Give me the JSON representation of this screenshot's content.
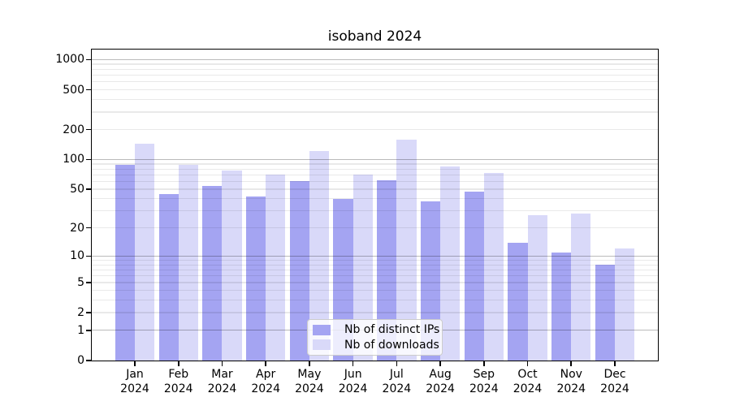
{
  "title": "isoband 2024",
  "legend": {
    "items": [
      {
        "label": "Nb of distinct IPs",
        "color": "#a4a4f2"
      },
      {
        "label": "Nb of downloads",
        "color": "#d9d9f9"
      }
    ]
  },
  "chart_data": {
    "type": "bar",
    "title": "isoband 2024",
    "categories": [
      "Jan 2024",
      "Feb 2024",
      "Mar 2024",
      "Apr 2024",
      "May 2024",
      "Jun 2024",
      "Jul 2024",
      "Aug 2024",
      "Sep 2024",
      "Oct 2024",
      "Nov 2024",
      "Dec 2024"
    ],
    "series": [
      {
        "name": "Nb of distinct IPs",
        "color": "#a4a4f2",
        "values": [
          88,
          45,
          54,
          42,
          61,
          40,
          62,
          38,
          47,
          14,
          11,
          8
        ]
      },
      {
        "name": "Nb of downloads",
        "color": "#d9d9f9",
        "values": [
          145,
          88,
          78,
          70,
          122,
          70,
          160,
          85,
          73,
          27,
          28,
          12
        ]
      }
    ],
    "xlabel": "",
    "ylabel": "",
    "y_scale": "log10(value+1)",
    "y_ticks": [
      0,
      1,
      2,
      5,
      10,
      20,
      50,
      100,
      200,
      500,
      1000
    ],
    "ylim": [
      0,
      1260
    ],
    "grid": true,
    "grid_major_color": "#b9b9b9",
    "grid_minor_color": "#ebebeb",
    "legend_position": "lower center inside plot"
  }
}
